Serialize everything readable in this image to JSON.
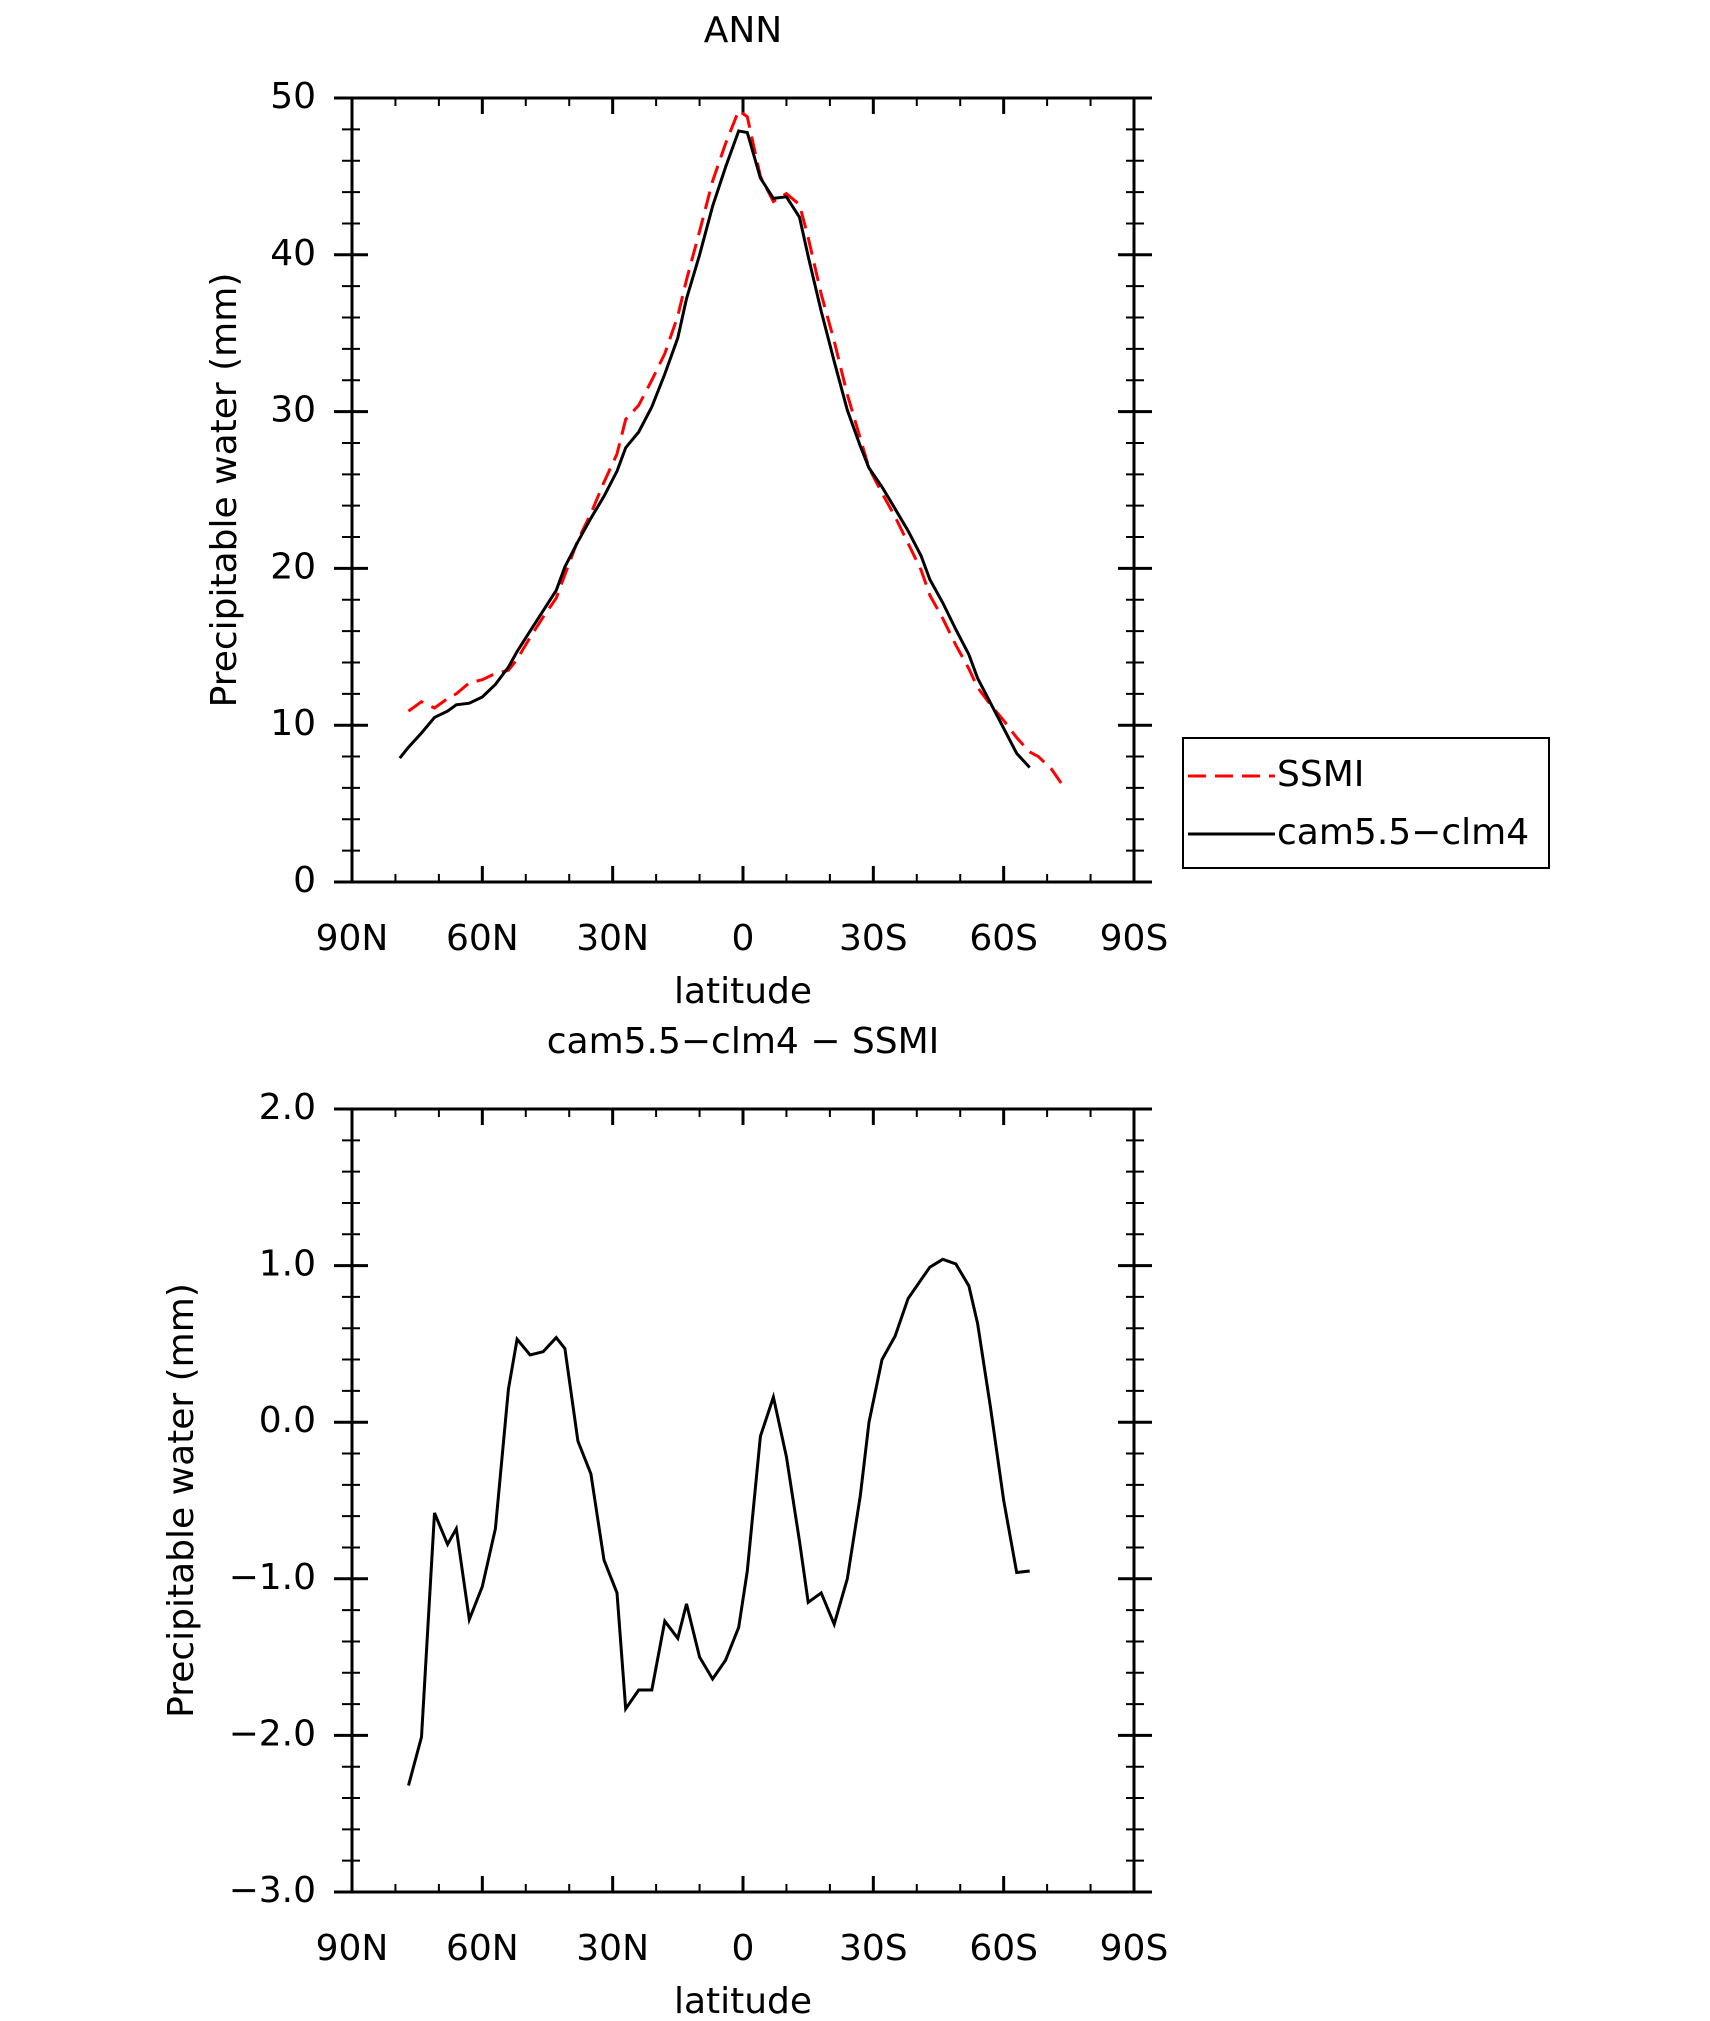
{
  "chart_data": [
    {
      "type": "line",
      "title": "ANN",
      "xlabel": "latitude",
      "ylabel": "Precipitable water (mm)",
      "xlim": [
        90,
        -90
      ],
      "xticks": [
        {
          "value": 90,
          "label": "90N"
        },
        {
          "value": 60,
          "label": "60N"
        },
        {
          "value": 30,
          "label": "30N"
        },
        0,
        {
          "value": -30,
          "label": "30S"
        },
        {
          "value": -60,
          "label": "60S"
        },
        {
          "value": -90,
          "label": "90S"
        }
      ],
      "ylim": [
        0,
        50
      ],
      "yticks": [
        0,
        10,
        20,
        30,
        40,
        50
      ],
      "legend": "right",
      "series": [
        {
          "name": "SSMI",
          "color": "#ff0000",
          "dashed": true,
          "x": [
            77,
            74,
            71,
            68,
            66,
            63,
            60,
            57,
            54,
            52,
            49,
            46,
            43,
            41,
            38,
            35,
            32,
            29,
            27,
            24,
            21,
            18,
            15,
            13,
            10,
            7,
            4,
            1,
            -1,
            -4,
            -7,
            -10,
            -13,
            -15,
            -18,
            -21,
            -24,
            -27,
            -29,
            -32,
            -35,
            -38,
            -41,
            -43,
            -46,
            -49,
            -52,
            -54,
            -57,
            -60,
            -63,
            -66,
            -68,
            -71,
            -74
          ],
          "values": [
            10.9,
            11.5,
            11.1,
            11.7,
            12.0,
            12.7,
            12.9,
            13.3,
            13.5,
            14.2,
            15.6,
            16.9,
            18.1,
            19.6,
            21.8,
            23.5,
            25.5,
            27.3,
            29.5,
            30.4,
            32.0,
            33.7,
            36.1,
            38.4,
            41.5,
            44.7,
            47.1,
            49.2,
            48.8,
            45.0,
            43.4,
            43.9,
            43.2,
            41.1,
            37.5,
            34.5,
            31.1,
            28.3,
            26.4,
            24.8,
            23.3,
            21.6,
            19.9,
            18.3,
            16.8,
            15.1,
            13.6,
            12.4,
            11.3,
            10.3,
            9.2,
            8.3,
            8.0,
            7.2,
            6.0
          ]
        },
        {
          "name": "cam5.5−clm4",
          "color": "#000000",
          "dashed": false,
          "x": [
            79,
            77,
            74,
            71,
            68,
            66,
            63,
            60,
            57,
            54,
            52,
            49,
            46,
            43,
            41,
            38,
            35,
            32,
            29,
            27,
            24,
            21,
            18,
            15,
            13,
            10,
            7,
            4,
            1,
            -1,
            -4,
            -7,
            -10,
            -13,
            -15,
            -18,
            -21,
            -24,
            -27,
            -29,
            -32,
            -35,
            -38,
            -41,
            -43,
            -46,
            -49,
            -52,
            -54,
            -57,
            -60,
            -63,
            -66
          ],
          "values": [
            7.9,
            8.6,
            9.5,
            10.5,
            10.9,
            11.3,
            11.4,
            11.8,
            12.6,
            13.7,
            14.7,
            16.0,
            17.3,
            18.6,
            20.1,
            21.7,
            23.2,
            24.6,
            26.2,
            27.7,
            28.7,
            30.3,
            32.4,
            34.7,
            37.2,
            40.0,
            43.1,
            45.6,
            47.9,
            47.8,
            44.9,
            43.6,
            43.7,
            42.4,
            39.9,
            36.4,
            33.2,
            30.1,
            27.8,
            26.4,
            25.2,
            23.8,
            22.4,
            20.8,
            19.3,
            17.8,
            16.1,
            14.5,
            13.0,
            11.4,
            9.8,
            8.2,
            7.3
          ]
        }
      ]
    },
    {
      "type": "line",
      "title": "cam5.5−clm4 − SSMI",
      "xlabel": "latitude",
      "ylabel": "Precipitable water (mm)",
      "xlim": [
        90,
        -90
      ],
      "xticks": [
        {
          "value": 90,
          "label": "90N"
        },
        {
          "value": 60,
          "label": "60N"
        },
        {
          "value": 30,
          "label": "30N"
        },
        0,
        {
          "value": -30,
          "label": "30S"
        },
        {
          "value": -60,
          "label": "60S"
        },
        {
          "value": -90,
          "label": "90S"
        }
      ],
      "ylim": [
        -3,
        2
      ],
      "yticks": [
        {
          "value": -3,
          "label": "−3.0"
        },
        {
          "value": -2,
          "label": "−2.0"
        },
        {
          "value": -1,
          "label": "−1.0"
        },
        {
          "value": 0,
          "label": "0.0"
        },
        {
          "value": 1,
          "label": "1.0"
        },
        {
          "value": 2,
          "label": "2.0"
        }
      ],
      "series": [
        {
          "color": "#000000",
          "dashed": false,
          "x": [
            77,
            74,
            71,
            68,
            66,
            63,
            60,
            57,
            54,
            52,
            49,
            46,
            43,
            41,
            38,
            35,
            32,
            29,
            27,
            24,
            21,
            18,
            15,
            13,
            10,
            7,
            4,
            1,
            -1,
            -4,
            -7,
            -10,
            -13,
            -15,
            -18,
            -21,
            -24,
            -27,
            -29,
            -32,
            -35,
            -38,
            -41,
            -43,
            -46,
            -49,
            -52,
            -54,
            -57,
            -60,
            -63,
            -66
          ],
          "values": [
            -2.32,
            -2.01,
            -0.58,
            -0.78,
            -0.68,
            -1.26,
            -1.05,
            -0.68,
            0.21,
            0.53,
            0.43,
            0.45,
            0.54,
            0.47,
            -0.12,
            -0.33,
            -0.88,
            -1.09,
            -1.83,
            -1.71,
            -1.71,
            -1.27,
            -1.38,
            -1.16,
            -1.5,
            -1.64,
            -1.52,
            -1.31,
            -0.95,
            -0.09,
            0.16,
            -0.22,
            -0.76,
            -1.15,
            -1.09,
            -1.29,
            -1.0,
            -0.47,
            0.0,
            0.4,
            0.55,
            0.79,
            0.91,
            0.99,
            1.04,
            1.01,
            0.87,
            0.63,
            0.09,
            -0.5,
            -0.96,
            -0.95
          ]
        }
      ]
    }
  ]
}
